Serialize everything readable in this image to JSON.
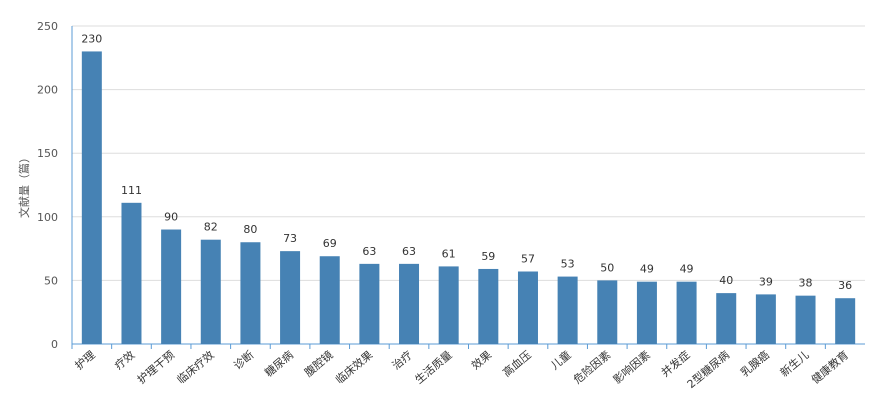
{
  "chart_data": {
    "type": "bar",
    "categories": [
      "护理",
      "疗效",
      "护理干预",
      "临床疗效",
      "诊断",
      "糖尿病",
      "腹腔镜",
      "临床效果",
      "治疗",
      "生活质量",
      "效果",
      "高血压",
      "儿童",
      "危险因素",
      "影响因素",
      "并发症",
      "2型糖尿病",
      "乳腺癌",
      "新生儿",
      "健康教育"
    ],
    "values": [
      230,
      111,
      90,
      82,
      80,
      73,
      69,
      63,
      63,
      61,
      59,
      57,
      53,
      50,
      49,
      49,
      40,
      39,
      38,
      36
    ],
    "title": "",
    "xlabel": "",
    "ylabel": "文献量（篇）",
    "ylim": [
      0,
      250
    ],
    "yticks": [
      "0",
      "50",
      "100",
      "150",
      "200",
      "250"
    ],
    "grid": true,
    "bar_color": "#4682b4",
    "grid_color": "#dddddd",
    "axis_color": "#5b9bd5"
  }
}
